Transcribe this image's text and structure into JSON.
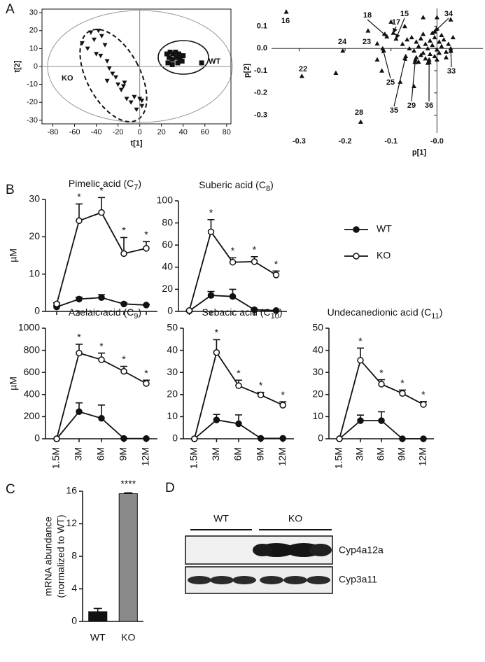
{
  "panels": [
    "A",
    "B",
    "C",
    "D"
  ],
  "chart_data": [
    {
      "type": "scatter",
      "xlabel": "t[1]",
      "ylabel": "t[2]",
      "frame": true,
      "zero_lines": true,
      "xlim": [
        -90,
        84
      ],
      "ylim": [
        -32,
        32
      ],
      "xticks": [
        -80,
        -60,
        -40,
        -20,
        0,
        20,
        40,
        60,
        80
      ],
      "yticks": [
        -30,
        -20,
        -10,
        0,
        10,
        20,
        30
      ],
      "annotations": [
        "WT",
        "KO"
      ],
      "series": [
        {
          "marker": "square",
          "color": "#111111",
          "x": [
            25,
            28,
            31,
            33,
            36,
            38,
            27,
            30,
            34,
            37,
            40,
            26,
            30,
            35,
            39,
            57
          ],
          "y": [
            7,
            8,
            7,
            8,
            7,
            6,
            5,
            4,
            5,
            4,
            6,
            2,
            1,
            2,
            3,
            2
          ]
        },
        {
          "marker": "triangle-down",
          "color": "#111111",
          "x": [
            -53,
            -48,
            -45,
            -42,
            -38,
            -35,
            -32,
            -40,
            -36,
            -30,
            -28,
            -25,
            -22,
            -30,
            -20,
            -17,
            -15,
            -12,
            -8,
            -5,
            0,
            2,
            2,
            -3,
            -14
          ],
          "y": [
            13,
            10,
            19,
            15,
            20,
            17,
            12,
            7,
            6,
            3,
            -1,
            -4,
            -6,
            -8,
            -10,
            -13,
            -11,
            -18,
            -20,
            -17,
            -18,
            -19,
            -22,
            -24,
            -9
          ]
        }
      ]
    },
    {
      "type": "scatter",
      "xlabel": "p[1]",
      "ylabel": "p[2]",
      "frame": false,
      "zero_lines": true,
      "xlim": [
        -0.36,
        0.1
      ],
      "ylim": [
        -0.38,
        0.18
      ],
      "xticks": [
        -0.3,
        -0.2,
        -0.1,
        {
          "value": 0,
          "label": "-0.0"
        }
      ],
      "yticks": [
        0.1,
        {
          "value": 0,
          "label": "0.0"
        },
        -0.1,
        -0.2,
        -0.3
      ],
      "series": [
        {
          "marker": "triangle-up",
          "color": "#111111",
          "x": [
            -0.328,
            -0.294,
            -0.205,
            -0.13,
            -0.166,
            -0.109,
            -0.089,
            -0.095,
            -0.005,
            -0.118,
            0.03,
            -0.068,
            -0.047,
            -0.017
          ],
          "y": [
            0.165,
            -0.124,
            -0.01,
            0.022,
            -0.33,
            0.054,
            0.044,
            0.07,
            0.076,
            0.0,
            0.0,
            -0.035,
            -0.05,
            -0.05
          ],
          "point_labels": [
            "16",
            "22",
            "24",
            "23",
            "28",
            "18",
            "15",
            "17",
            "34",
            "25",
            "33",
            "35",
            "29",
            "36"
          ]
        },
        {
          "marker": "triangle-up",
          "color": "#111111",
          "x": [
            -0.22,
            -0.13,
            -0.15,
            -0.12,
            -0.08,
            -0.05,
            -0.07,
            -0.1,
            -0.03,
            0.0,
            0.03,
            -0.065,
            -0.055,
            -0.045,
            -0.035,
            -0.025,
            -0.015,
            -0.005,
            0.005,
            0.015,
            0.025,
            -0.06,
            -0.05,
            -0.04,
            -0.03,
            -0.02,
            -0.01,
            0.0,
            0.01,
            0.02,
            -0.045,
            -0.035,
            -0.025,
            -0.015,
            -0.005,
            0.005,
            -0.04,
            -0.02,
            0.0,
            0.02,
            -0.03,
            -0.01,
            0.01,
            0.035,
            -0.075
          ],
          "y": [
            -0.11,
            -0.05,
            0.08,
            -0.1,
            -0.15,
            -0.17,
            0.1,
            0.12,
            0.14,
            0.14,
            0.13,
            0.04,
            0.05,
            0.03,
            0.045,
            0.02,
            0.035,
            0.05,
            0.03,
            0.04,
            0.02,
            0.0,
            -0.01,
            0.01,
            -0.02,
            0.0,
            0.015,
            -0.005,
            0.01,
            -0.015,
            -0.04,
            -0.03,
            -0.045,
            -0.025,
            -0.035,
            -0.02,
            -0.06,
            -0.065,
            -0.05,
            -0.04,
            0.065,
            0.07,
            0.06,
            0.05,
            0.02
          ]
        }
      ]
    },
    {
      "type": "line",
      "title": "Pimelic acid (C7)",
      "ylabel": "µM",
      "categories": [
        null,
        null,
        null,
        null,
        null
      ],
      "ylim": [
        0,
        30
      ],
      "yticks": [
        0,
        10,
        20,
        30
      ],
      "significance": [
        null,
        "*",
        "*",
        "*",
        "*"
      ],
      "series": [
        {
          "color": "#111111",
          "marker_fill": "#111111",
          "values": [
            1.2,
            3.3,
            3.7,
            2.0,
            1.7
          ],
          "errors": [
            0.3,
            0.5,
            0.8,
            0.3,
            0.2
          ]
        },
        {
          "color": "#111111",
          "marker_fill": "#ffffff",
          "values": [
            2.0,
            24.3,
            26.5,
            15.5,
            16.9
          ],
          "errors": [
            0.3,
            4.5,
            4.0,
            4.3,
            1.8
          ]
        }
      ]
    },
    {
      "type": "line",
      "title": "Suberic acid (C8)",
      "categories": [
        null,
        null,
        null,
        null,
        null
      ],
      "ylim": [
        0,
        100
      ],
      "yticks": [
        0,
        20,
        40,
        60,
        80,
        100
      ],
      "significance": [
        null,
        "*",
        "*",
        "*",
        "*"
      ],
      "legend": "right",
      "series": [
        {
          "name": "WT",
          "color": "#111111",
          "marker_fill": "#111111",
          "values": [
            0.5,
            14.5,
            13.5,
            1.5,
            0.8
          ],
          "errors": [
            0.3,
            3.5,
            6.5,
            0.5,
            0.3
          ]
        },
        {
          "name": "KO",
          "color": "#111111",
          "marker_fill": "#ffffff",
          "values": [
            0.8,
            72,
            44.5,
            45,
            33
          ],
          "errors": [
            0.3,
            11,
            4,
            4.5,
            3.5
          ]
        }
      ]
    },
    {
      "type": "line",
      "title": "Azelaic acid (C9)",
      "ylabel": "µM",
      "categories": [
        "1.5M",
        "3M",
        "6M",
        "9M",
        "12M"
      ],
      "ylim": [
        0,
        1000
      ],
      "yticks": [
        0,
        200,
        400,
        600,
        800,
        1000
      ],
      "significance": [
        null,
        "*",
        "*",
        "*",
        "*"
      ],
      "series": [
        {
          "color": "#111111",
          "marker_fill": "#111111",
          "values": [
            0,
            245,
            185,
            3,
            2
          ],
          "errors": [
            0,
            80,
            120,
            0,
            0
          ]
        },
        {
          "color": "#111111",
          "marker_fill": "#ffffff",
          "values": [
            0,
            775,
            715,
            610,
            500
          ],
          "errors": [
            0,
            80,
            60,
            45,
            30
          ]
        }
      ]
    },
    {
      "type": "line",
      "title": "Sebacic acid (C10)",
      "categories": [
        "1.5M",
        "3M",
        "6M",
        "9M",
        "12M"
      ],
      "ylim": [
        0,
        50
      ],
      "yticks": [
        0,
        10,
        20,
        30,
        40,
        50
      ],
      "significance": [
        null,
        "*",
        "*",
        "*",
        "*"
      ],
      "series": [
        {
          "color": "#111111",
          "marker_fill": "#111111",
          "values": [
            0,
            8.5,
            6.8,
            0.2,
            0.2
          ],
          "errors": [
            0,
            2.5,
            4,
            0,
            0
          ]
        },
        {
          "color": "#111111",
          "marker_fill": "#ffffff",
          "values": [
            0,
            39,
            24,
            19.8,
            15.2
          ],
          "errors": [
            0,
            5.8,
            2.5,
            1.2,
            1.5
          ]
        }
      ]
    },
    {
      "type": "line",
      "title": "Undecanedionic acid (C11)",
      "categories": [
        "1.5M",
        "3M",
        "6M",
        "9M",
        "12M"
      ],
      "ylim": [
        0,
        50
      ],
      "yticks": [
        0,
        10,
        20,
        30,
        40,
        50
      ],
      "significance": [
        null,
        "*",
        "*",
        "*",
        "*"
      ],
      "series": [
        {
          "color": "#111111",
          "marker_fill": "#111111",
          "values": [
            0,
            8.2,
            8.2,
            0,
            0
          ],
          "errors": [
            0,
            2.5,
            4,
            0,
            0
          ]
        },
        {
          "color": "#111111",
          "marker_fill": "#ffffff",
          "values": [
            0,
            35.5,
            24.7,
            20.5,
            15.5
          ],
          "errors": [
            0,
            5.5,
            2,
            1.5,
            1.3
          ]
        }
      ]
    },
    {
      "type": "bar",
      "ylabel": [
        "mRNA abundance",
        "(normalized to WT)"
      ],
      "categories": [
        "WT",
        "KO"
      ],
      "values": [
        1.2,
        15.7
      ],
      "errors": [
        0.4,
        0.1
      ],
      "colors": [
        "#111111",
        "#8a8a8a"
      ],
      "value_annotations": [
        null,
        "****"
      ],
      "ylim": [
        0,
        16
      ],
      "yticks": [
        0,
        4,
        8,
        12,
        16
      ]
    }
  ],
  "blot": {
    "groups": [
      "WT",
      "KO"
    ],
    "bands": [
      "Cyp4a12a",
      "Cyp3a11"
    ]
  }
}
